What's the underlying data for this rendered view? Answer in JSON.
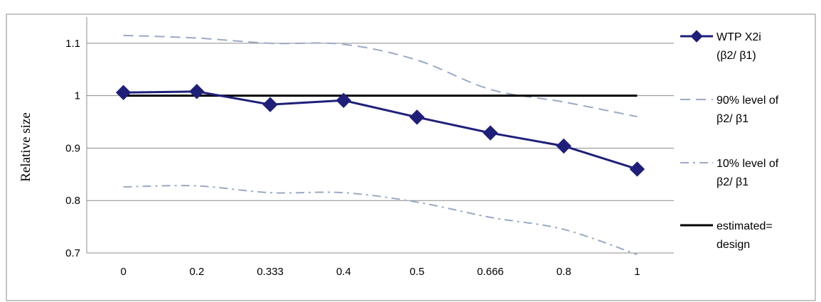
{
  "chart_data": {
    "type": "line",
    "title": "",
    "xlabel": "",
    "ylabel": "Relative size",
    "categories": [
      "0",
      "0.2",
      "0.333",
      "0.4",
      "0.5",
      "0.666",
      "0.8",
      "1"
    ],
    "ylim": [
      0.7,
      1.15
    ],
    "yticks": [
      "0.7",
      "0.8",
      "0.9",
      "1",
      "1.1"
    ],
    "grid": "horizontal",
    "legend_position": "right",
    "series": [
      {
        "name": "WTP X2i (β2/β1)",
        "legend_lines": [
          "WTP  X2i",
          "(β2/ β1)"
        ],
        "values": [
          1.006,
          1.008,
          0.983,
          0.991,
          0.959,
          0.929,
          0.904,
          0.86
        ],
        "color": "#1f1f7a",
        "style": "solid-diamond"
      },
      {
        "name": "90% level of β2/β1",
        "legend_lines": [
          "90% level of",
          "β2/ β1"
        ],
        "values": [
          1.115,
          1.11,
          1.1,
          1.098,
          1.068,
          1.012,
          0.988,
          0.96
        ],
        "color": "#9aaac4",
        "style": "dashed"
      },
      {
        "name": "10% level of β2/β1",
        "legend_lines": [
          "10% level of",
          "β2/ β1"
        ],
        "values": [
          0.826,
          0.828,
          0.815,
          0.815,
          0.797,
          0.768,
          0.745,
          0.697
        ],
        "color": "#9aaac4",
        "style": "dashdot"
      },
      {
        "name": "estimated= design",
        "legend_lines": [
          "estimated=",
          "design"
        ],
        "values": [
          1,
          1,
          1,
          1,
          1,
          1,
          1,
          1
        ],
        "color": "#000000",
        "style": "solid"
      }
    ]
  }
}
